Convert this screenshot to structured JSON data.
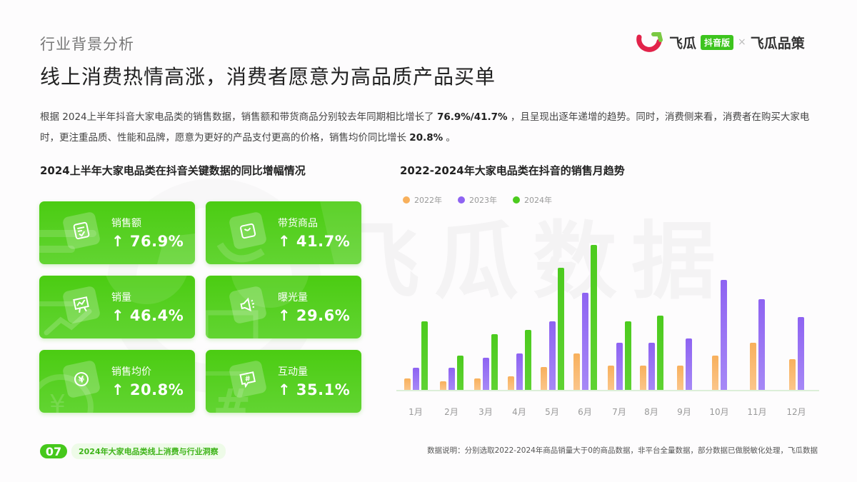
{
  "header": {
    "section_label": "行业背景分析",
    "title": "线上消费热情高涨，消费者愿意为高品质产品买单",
    "brand": {
      "name1": "飞瓜",
      "badge": "抖音版",
      "separator": "×",
      "name2": "飞瓜品策",
      "colors": {
        "red": "#e2234a",
        "green": "#3dc41e"
      }
    }
  },
  "intro": {
    "part1": "根据 2024上半年抖音大家电品类的销售数据，销售额和带货商品分别较去年同期相比增长了 ",
    "highlight1": "76.9%/41.7%",
    "part2": " ，且呈现出逐年递增的趋势。同时，消费侧来看，消费者在购买大家电时，更注重品质、性能和品牌，愿意为更好的产品支付更高的价格，销售均价同比增长 ",
    "highlight2": "20.8%",
    "part3": " 。"
  },
  "left_panel": {
    "heading": "2024上半年大家电品类在抖音关键数据的同比增幅情况",
    "arrow": "↑",
    "cards": [
      {
        "label": "销售额",
        "value": "76.9%",
        "icon": "receipt-check-icon"
      },
      {
        "label": "带货商品",
        "value": "41.7%",
        "icon": "shopping-bag-icon"
      },
      {
        "label": "销量",
        "value": "46.4%",
        "icon": "presentation-chart-icon"
      },
      {
        "label": "曝光量",
        "value": "29.6%",
        "icon": "megaphone-icon"
      },
      {
        "label": "销售均价",
        "value": "20.8%",
        "icon": "yen-coin-icon"
      },
      {
        "label": "互动量",
        "value": "35.1%",
        "icon": "hashtag-chat-icon"
      }
    ]
  },
  "right_panel": {
    "heading": "2022-2024年大家电品类在抖音的销售月趋势",
    "watermark": "飞瓜数据"
  },
  "chart_data": {
    "type": "bar",
    "title": "2022-2024年大家电品类在抖音的销售月趋势",
    "xlabel": "",
    "ylabel": "",
    "grid": false,
    "legend_position": "top-left",
    "categories": [
      "1月",
      "2月",
      "3月",
      "4月",
      "5月",
      "6月",
      "7月",
      "8月",
      "9月",
      "10月",
      "11月",
      "12月"
    ],
    "series": [
      {
        "name": "2022年",
        "color": "#f8b05c",
        "values": [
          16,
          12,
          16,
          19,
          32,
          51,
          34,
          34,
          34,
          48,
          66,
          43
        ]
      },
      {
        "name": "2023年",
        "color": "#8e63f2",
        "values": [
          31,
          31,
          45,
          51,
          96,
          136,
          66,
          66,
          72,
          154,
          127,
          102
        ]
      },
      {
        "name": "2024年",
        "color": "#4ccb1e",
        "values": [
          96,
          48,
          78,
          84,
          171,
          203,
          96,
          104,
          null,
          null,
          null,
          null
        ]
      }
    ],
    "note": "Relative bar heights (no y-axis shown); 2024 data available through 8月 only"
  },
  "footer": {
    "page_number": "07",
    "report_title": "2024年大家电品类线上消费与行业洞察",
    "footnote": "数据说明：分别选取2022-2024年商品销量大于0的商品数据，非平台全量数据，部分数据已做脱敏化处理，飞瓜数据"
  }
}
